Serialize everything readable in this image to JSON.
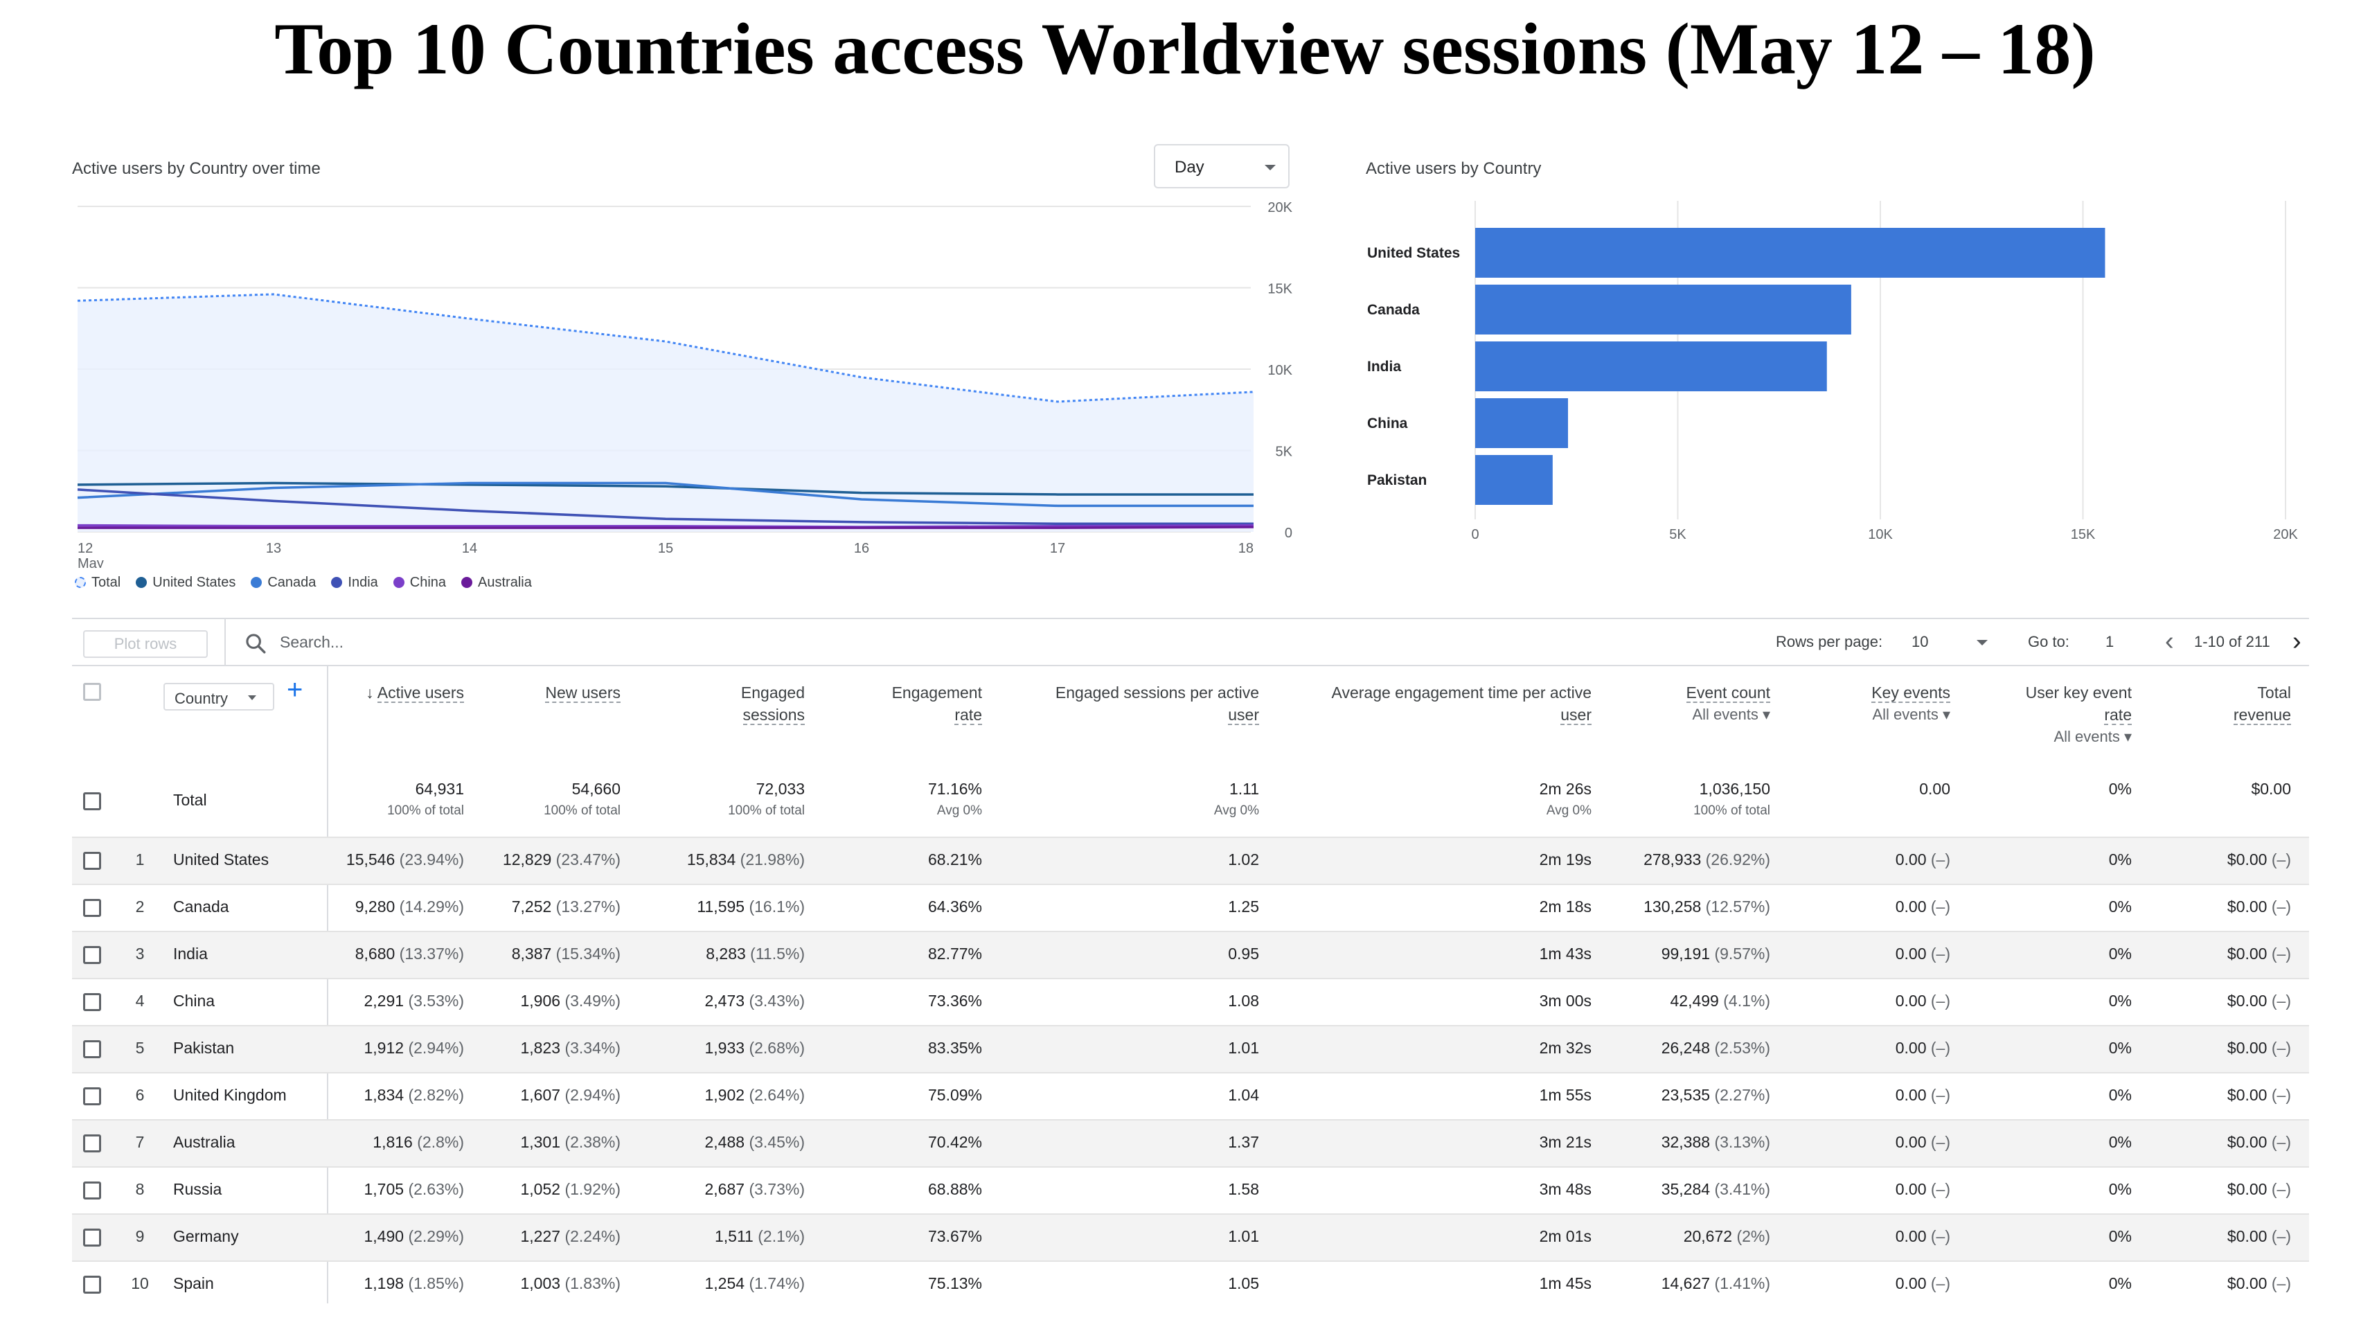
{
  "title": "Top 10 Countries access Worldview sessions (May 12 – 18)",
  "line_chart": {
    "label": "Active users by Country over time",
    "granularity": "Day",
    "x_ticks": [
      "12",
      "13",
      "14",
      "15",
      "16",
      "17",
      "18"
    ],
    "x_month": "May",
    "y_ticks": [
      "0",
      "5K",
      "10K",
      "15K",
      "20K"
    ],
    "legend": [
      {
        "name": "Total",
        "color": "#4285f4",
        "icon": "dashed-circle-icon"
      },
      {
        "name": "United States",
        "color": "#1f5f94"
      },
      {
        "name": "Canada",
        "color": "#3a7bd5"
      },
      {
        "name": "India",
        "color": "#3f51b5"
      },
      {
        "name": "China",
        "color": "#7b3fc9"
      },
      {
        "name": "Australia",
        "color": "#6a1b9a"
      }
    ]
  },
  "bar_chart": {
    "label": "Active users by Country",
    "x_ticks": [
      "0",
      "5K",
      "10K",
      "15K",
      "20K"
    ],
    "color": "#3c78d8"
  },
  "chart_data": [
    {
      "type": "line",
      "title": "Active users by Country over time",
      "x": [
        "May 12",
        "May 13",
        "May 14",
        "May 15",
        "May 16",
        "May 17",
        "May 18"
      ],
      "ylim": [
        0,
        20000
      ],
      "grid": true,
      "legend_position": "bottom-left",
      "series": [
        {
          "name": "Total",
          "values": [
            14200,
            14600,
            13100,
            11700,
            9500,
            8000,
            8600
          ]
        },
        {
          "name": "United States",
          "values": [
            2900,
            3000,
            2900,
            2800,
            2400,
            2300,
            2300
          ]
        },
        {
          "name": "Canada",
          "values": [
            2100,
            2700,
            3000,
            3000,
            2000,
            1600,
            1600
          ]
        },
        {
          "name": "India",
          "values": [
            2600,
            1900,
            1300,
            800,
            600,
            500,
            500
          ]
        },
        {
          "name": "China",
          "values": [
            400,
            350,
            350,
            350,
            300,
            350,
            400
          ]
        },
        {
          "name": "Australia",
          "values": [
            250,
            250,
            250,
            250,
            250,
            250,
            300
          ]
        }
      ]
    },
    {
      "type": "bar",
      "orientation": "horizontal",
      "title": "Active users by Country",
      "categories": [
        "United States",
        "Canada",
        "India",
        "China",
        "Pakistan"
      ],
      "values": [
        15546,
        9280,
        8680,
        2291,
        1912
      ],
      "xlim": [
        0,
        20000
      ],
      "grid": true
    }
  ],
  "toolbar": {
    "plot_rows": "Plot rows",
    "search_placeholder": "Search...",
    "rows_per_page_label": "Rows per page:",
    "rows_per_page": "10",
    "goto_label": "Go to:",
    "goto_value": "1",
    "range": "1-10 of 211"
  },
  "table": {
    "dimension": "Country",
    "headers": {
      "active_users": "Active users",
      "new_users": "New users",
      "engaged_sessions_1": "Engaged",
      "engaged_sessions_2": "sessions",
      "engagement_rate_1": "Engagement",
      "engagement_rate_2": "rate",
      "esau_1": "Engaged sessions per active",
      "esau_2": "user",
      "aet_1": "Average engagement time per active",
      "aet_2": "user",
      "event_count": "Event count",
      "event_count_sub": "All events",
      "key_events": "Key events",
      "key_events_sub": "All events",
      "ukr_1": "User key event",
      "ukr_2": "rate",
      "ukr_sub": "All events",
      "revenue_1": "Total",
      "revenue_2": "revenue"
    },
    "total": {
      "label": "Total",
      "active_users": "64,931",
      "active_users_sub": "100% of total",
      "new_users": "54,660",
      "new_users_sub": "100% of total",
      "engaged_sessions": "72,033",
      "engaged_sessions_sub": "100% of total",
      "engagement_rate": "71.16%",
      "engagement_rate_sub": "Avg 0%",
      "esau": "1.11",
      "esau_sub": "Avg 0%",
      "aet": "2m 26s",
      "aet_sub": "Avg 0%",
      "event_count": "1,036,150",
      "event_count_sub": "100% of total",
      "key_events": "0.00",
      "ukr": "0%",
      "revenue": "$0.00"
    },
    "rows": [
      {
        "rank": "1",
        "country": "United States",
        "au": "15,546",
        "au_p": "(23.94%)",
        "nu": "12,829",
        "nu_p": "(23.47%)",
        "es": "15,834",
        "es_p": "(21.98%)",
        "er": "68.21%",
        "esau": "1.02",
        "aet": "2m 19s",
        "ec": "278,933",
        "ec_p": "(26.92%)",
        "ke": "0.00",
        "ke_p": "(–)",
        "ukr": "0%",
        "rev": "$0.00",
        "rev_p": "(–)"
      },
      {
        "rank": "2",
        "country": "Canada",
        "au": "9,280",
        "au_p": "(14.29%)",
        "nu": "7,252",
        "nu_p": "(13.27%)",
        "es": "11,595",
        "es_p": "(16.1%)",
        "er": "64.36%",
        "esau": "1.25",
        "aet": "2m 18s",
        "ec": "130,258",
        "ec_p": "(12.57%)",
        "ke": "0.00",
        "ke_p": "(–)",
        "ukr": "0%",
        "rev": "$0.00",
        "rev_p": "(–)"
      },
      {
        "rank": "3",
        "country": "India",
        "au": "8,680",
        "au_p": "(13.37%)",
        "nu": "8,387",
        "nu_p": "(15.34%)",
        "es": "8,283",
        "es_p": "(11.5%)",
        "er": "82.77%",
        "esau": "0.95",
        "aet": "1m 43s",
        "ec": "99,191",
        "ec_p": "(9.57%)",
        "ke": "0.00",
        "ke_p": "(–)",
        "ukr": "0%",
        "rev": "$0.00",
        "rev_p": "(–)"
      },
      {
        "rank": "4",
        "country": "China",
        "au": "2,291",
        "au_p": "(3.53%)",
        "nu": "1,906",
        "nu_p": "(3.49%)",
        "es": "2,473",
        "es_p": "(3.43%)",
        "er": "73.36%",
        "esau": "1.08",
        "aet": "3m 00s",
        "ec": "42,499",
        "ec_p": "(4.1%)",
        "ke": "0.00",
        "ke_p": "(–)",
        "ukr": "0%",
        "rev": "$0.00",
        "rev_p": "(–)"
      },
      {
        "rank": "5",
        "country": "Pakistan",
        "au": "1,912",
        "au_p": "(2.94%)",
        "nu": "1,823",
        "nu_p": "(3.34%)",
        "es": "1,933",
        "es_p": "(2.68%)",
        "er": "83.35%",
        "esau": "1.01",
        "aet": "2m 32s",
        "ec": "26,248",
        "ec_p": "(2.53%)",
        "ke": "0.00",
        "ke_p": "(–)",
        "ukr": "0%",
        "rev": "$0.00",
        "rev_p": "(–)"
      },
      {
        "rank": "6",
        "country": "United Kingdom",
        "au": "1,834",
        "au_p": "(2.82%)",
        "nu": "1,607",
        "nu_p": "(2.94%)",
        "es": "1,902",
        "es_p": "(2.64%)",
        "er": "75.09%",
        "esau": "1.04",
        "aet": "1m 55s",
        "ec": "23,535",
        "ec_p": "(2.27%)",
        "ke": "0.00",
        "ke_p": "(–)",
        "ukr": "0%",
        "rev": "$0.00",
        "rev_p": "(–)"
      },
      {
        "rank": "7",
        "country": "Australia",
        "au": "1,816",
        "au_p": "(2.8%)",
        "nu": "1,301",
        "nu_p": "(2.38%)",
        "es": "2,488",
        "es_p": "(3.45%)",
        "er": "70.42%",
        "esau": "1.37",
        "aet": "3m 21s",
        "ec": "32,388",
        "ec_p": "(3.13%)",
        "ke": "0.00",
        "ke_p": "(–)",
        "ukr": "0%",
        "rev": "$0.00",
        "rev_p": "(–)"
      },
      {
        "rank": "8",
        "country": "Russia",
        "au": "1,705",
        "au_p": "(2.63%)",
        "nu": "1,052",
        "nu_p": "(1.92%)",
        "es": "2,687",
        "es_p": "(3.73%)",
        "er": "68.88%",
        "esau": "1.58",
        "aet": "3m 48s",
        "ec": "35,284",
        "ec_p": "(3.41%)",
        "ke": "0.00",
        "ke_p": "(–)",
        "ukr": "0%",
        "rev": "$0.00",
        "rev_p": "(–)"
      },
      {
        "rank": "9",
        "country": "Germany",
        "au": "1,490",
        "au_p": "(2.29%)",
        "nu": "1,227",
        "nu_p": "(2.24%)",
        "es": "1,511",
        "es_p": "(2.1%)",
        "er": "73.67%",
        "esau": "1.01",
        "aet": "2m 01s",
        "ec": "20,672",
        "ec_p": "(2%)",
        "ke": "0.00",
        "ke_p": "(–)",
        "ukr": "0%",
        "rev": "$0.00",
        "rev_p": "(–)"
      },
      {
        "rank": "10",
        "country": "Spain",
        "au": "1,198",
        "au_p": "(1.85%)",
        "nu": "1,003",
        "nu_p": "(1.83%)",
        "es": "1,254",
        "es_p": "(1.74%)",
        "er": "75.13%",
        "esau": "1.05",
        "aet": "1m 45s",
        "ec": "14,627",
        "ec_p": "(1.41%)",
        "ke": "0.00",
        "ke_p": "(–)",
        "ukr": "0%",
        "rev": "$0.00",
        "rev_p": "(–)"
      }
    ]
  }
}
